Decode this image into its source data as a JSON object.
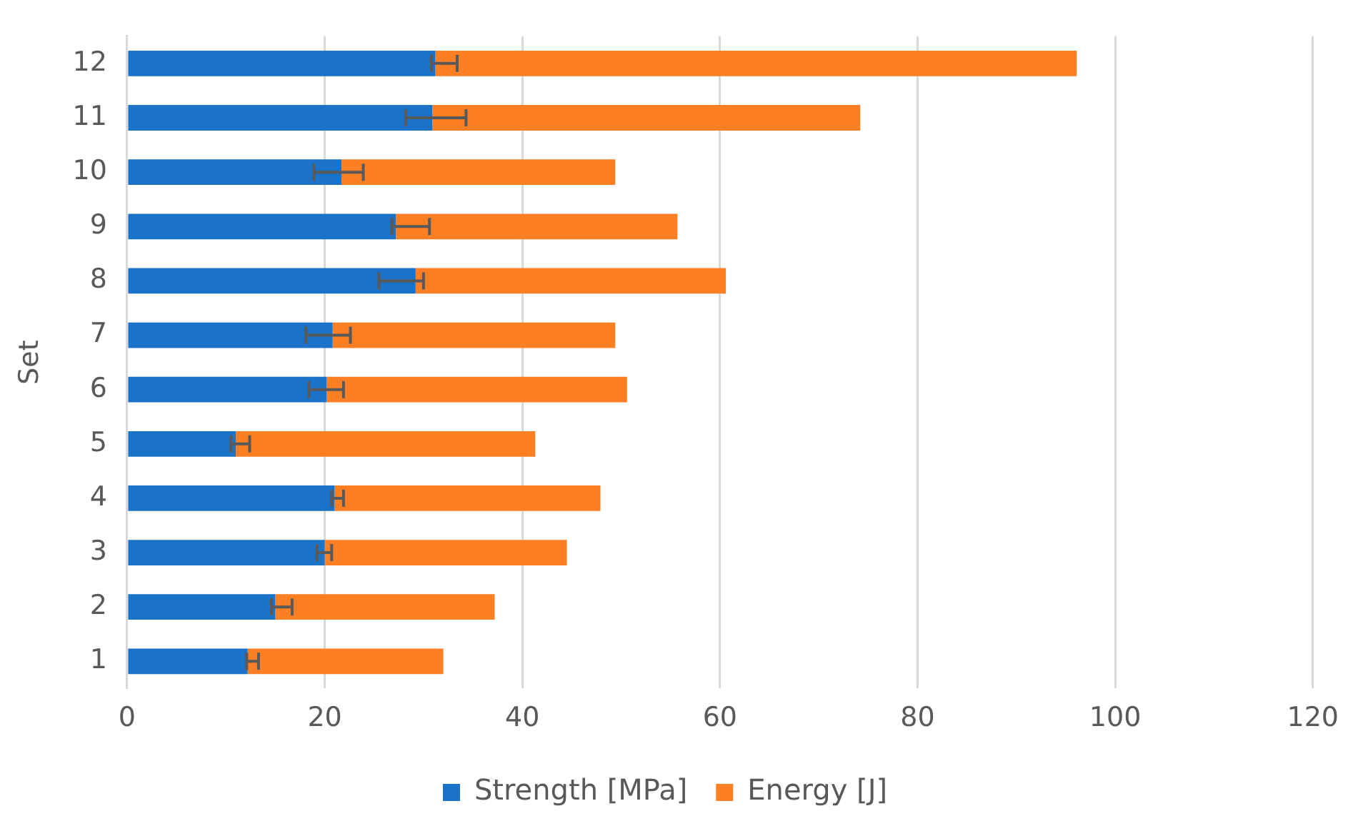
{
  "chart_data": {
    "type": "bar",
    "orientation": "horizontal",
    "stacked": true,
    "ylabel": "Set",
    "categories": [
      "12",
      "11",
      "10",
      "9",
      "8",
      "7",
      "6",
      "5",
      "4",
      "3",
      "2",
      "1"
    ],
    "series": [
      {
        "name": "Strength [MPa]",
        "color": "#1a73c8",
        "values": [
          31.2,
          30.9,
          21.7,
          27.2,
          29.2,
          20.8,
          20.2,
          11.0,
          21.0,
          20.0,
          15.0,
          12.2
        ],
        "errors": [
          [
            30.8,
            33.4
          ],
          [
            28.2,
            34.3
          ],
          [
            18.9,
            23.9
          ],
          [
            26.8,
            30.6
          ],
          [
            25.5,
            30.0
          ],
          [
            18.1,
            22.6
          ],
          [
            18.4,
            21.9
          ],
          [
            10.5,
            12.4
          ],
          [
            20.7,
            21.9
          ],
          [
            19.2,
            20.7
          ],
          [
            14.6,
            16.7
          ],
          [
            12.1,
            13.3
          ]
        ]
      },
      {
        "name": "Energy [J]",
        "color": "#fd7f24",
        "values": [
          64.9,
          43.3,
          27.7,
          28.5,
          31.4,
          28.6,
          30.4,
          30.3,
          26.9,
          24.5,
          22.2,
          19.8
        ]
      }
    ],
    "xlim": [
      0,
      120
    ],
    "xticks": [
      0,
      20,
      40,
      60,
      80,
      100,
      120
    ],
    "grid": "x",
    "legend": "bottom"
  }
}
